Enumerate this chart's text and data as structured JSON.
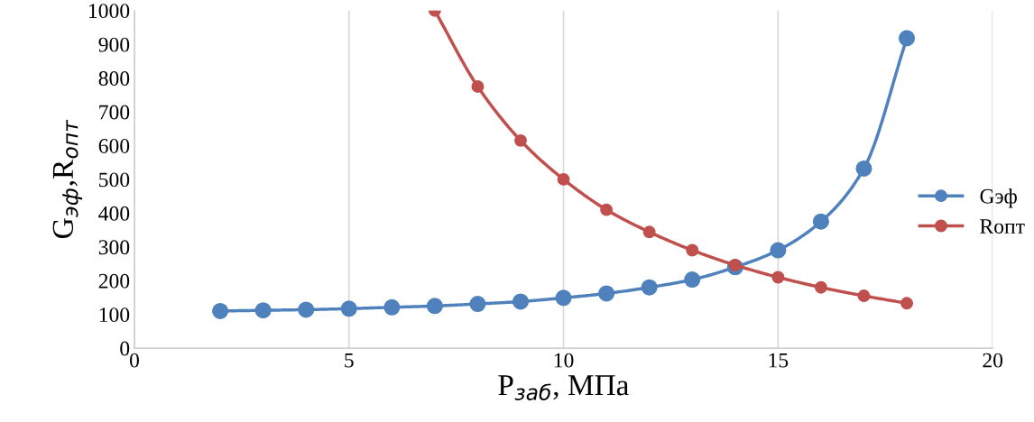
{
  "chart_data": {
    "type": "line",
    "xlabel": "P$_{заб}$, МПа",
    "ylabel": "G$_{эф}$,R$_{опт}$",
    "series": [
      {
        "name": "Gэф",
        "color": "#4f81bd",
        "x": [
          2,
          3,
          4,
          5,
          6,
          7,
          8,
          9,
          10,
          11,
          12,
          13,
          14,
          15,
          16,
          17,
          18
        ],
        "values": [
          110,
          112,
          114,
          117,
          121,
          125,
          131,
          138,
          149,
          162,
          180,
          203,
          240,
          290,
          375,
          532,
          918
        ]
      },
      {
        "name": "Rопт",
        "color": "#c0504d",
        "x": [
          7,
          8,
          9,
          10,
          11,
          12,
          13,
          14,
          15,
          16,
          17,
          18
        ],
        "values": [
          1000,
          775,
          615,
          500,
          410,
          344,
          290,
          246,
          210,
          180,
          155,
          133
        ]
      }
    ],
    "xlim": [
      0,
      20
    ],
    "xticks": [
      0,
      5,
      10,
      15,
      20
    ],
    "ylim": [
      0,
      1000
    ],
    "yticks": [
      0,
      100,
      200,
      300,
      400,
      500,
      600,
      700,
      800,
      900,
      1000
    ],
    "grid": "x",
    "legend": "right",
    "marker": "circle",
    "line_style": "solid"
  }
}
